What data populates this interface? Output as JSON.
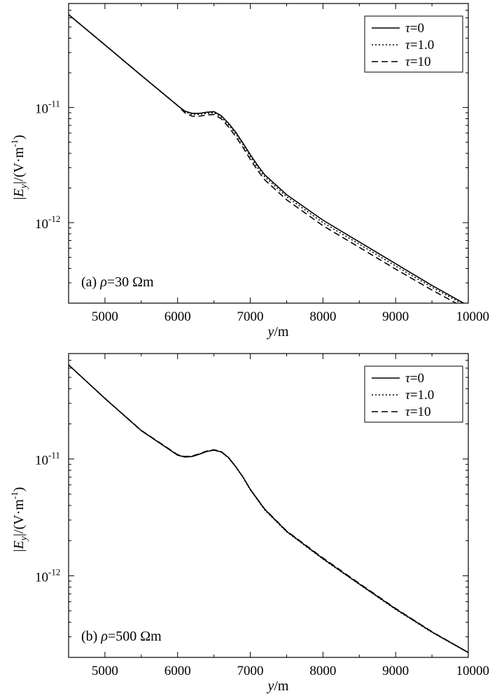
{
  "chart_data": [
    {
      "type": "line",
      "annotation_prefix": "(a) ",
      "annotation_symbol": "ρ",
      "annotation_value": "=30 Ωm",
      "xlabel_italic": "y",
      "xlabel_rest": "/m",
      "ylabel_prefix": "|",
      "ylabel_italic": "E",
      "ylabel_sub": "y",
      "ylabel_rest": "|/(V·m",
      "ylabel_sup": "-1",
      "ylabel_close": ")",
      "xlim": [
        4500,
        10000
      ],
      "ylim": [
        2e-13,
        8e-11
      ],
      "log_y": true,
      "legend_position": "top-right",
      "x_ticks": [
        "5000",
        "6000",
        "7000",
        "8000",
        "9000",
        "10000"
      ],
      "y_ticks": [
        {
          "base": "10",
          "exp": "-11",
          "value": 1e-11
        },
        {
          "base": "10",
          "exp": "-12",
          "value": 1e-12
        }
      ],
      "x": [
        4500,
        5000,
        5500,
        6000,
        6100,
        6200,
        6300,
        6400,
        6500,
        6600,
        6700,
        6800,
        6900,
        7000,
        7100,
        7200,
        7500,
        8000,
        8500,
        9000,
        9500,
        10000
      ],
      "series": [
        {
          "name": "τ=0",
          "symbol": "τ",
          "label_value": "=0",
          "dash": "solid",
          "values": [
            6.4e-11,
            3.5e-11,
            1.9e-11,
            1.04e-11,
            9.3e-12,
            8.9e-12,
            8.9e-12,
            9.1e-12,
            9.2e-12,
            8.5e-12,
            7.3e-12,
            6.1e-12,
            4.9e-12,
            3.9e-12,
            3.15e-12,
            2.6e-12,
            1.75e-12,
            1.05e-12,
            6.8e-13,
            4.4e-13,
            2.85e-13,
            1.9e-13
          ]
        },
        {
          "name": "τ=1.0",
          "symbol": "τ",
          "label_value": "=1.0",
          "dash": "dotted",
          "values": [
            6.4e-11,
            3.5e-11,
            1.9e-11,
            1.04e-11,
            9.2e-12,
            8.7e-12,
            8.7e-12,
            8.9e-12,
            9e-12,
            8.3e-12,
            7.1e-12,
            5.9e-12,
            4.75e-12,
            3.75e-12,
            3e-12,
            2.5e-12,
            1.68e-12,
            1e-12,
            6.5e-13,
            4.2e-13,
            2.75e-13,
            1.85e-13
          ]
        },
        {
          "name": "τ=10",
          "symbol": "τ",
          "label_value": "=10",
          "dash": "dashed",
          "values": [
            6.4e-11,
            3.5e-11,
            1.9e-11,
            1.04e-11,
            9e-12,
            8.4e-12,
            8.4e-12,
            8.6e-12,
            8.7e-12,
            8e-12,
            6.8e-12,
            5.6e-12,
            4.5e-12,
            3.55e-12,
            2.85e-12,
            2.35e-12,
            1.58e-12,
            9.4e-13,
            6.1e-13,
            3.95e-13,
            2.6e-13,
            1.75e-13
          ]
        }
      ]
    },
    {
      "type": "line",
      "annotation_prefix": "(b) ",
      "annotation_symbol": "ρ",
      "annotation_value": "=500 Ωm",
      "xlabel_italic": "y",
      "xlabel_rest": "/m",
      "ylabel_prefix": "|",
      "ylabel_italic": "E",
      "ylabel_sub": "y",
      "ylabel_rest": "|/(V·m",
      "ylabel_sup": "-1",
      "ylabel_close": ")",
      "xlim": [
        4500,
        10000
      ],
      "ylim": [
        2e-13,
        8e-11
      ],
      "log_y": true,
      "legend_position": "top-right",
      "x_ticks": [
        "5000",
        "6000",
        "7000",
        "8000",
        "9000",
        "10000"
      ],
      "y_ticks": [
        {
          "base": "10",
          "exp": "-11",
          "value": 1e-11
        },
        {
          "base": "10",
          "exp": "-12",
          "value": 1e-12
        }
      ],
      "x": [
        4500,
        5000,
        5500,
        6000,
        6100,
        6200,
        6300,
        6400,
        6500,
        6600,
        6700,
        6800,
        6900,
        7000,
        7200,
        7500,
        8000,
        8500,
        9000,
        9500,
        10000
      ],
      "series": [
        {
          "name": "τ=0",
          "symbol": "τ",
          "label_value": "=0",
          "dash": "solid",
          "values": [
            6.4e-11,
            3.3e-11,
            1.75e-11,
            1.08e-11,
            1.04e-11,
            1.05e-11,
            1.1e-11,
            1.16e-11,
            1.19e-11,
            1.15e-11,
            1.03e-11,
            8.6e-12,
            7e-12,
            5.5e-12,
            3.7e-12,
            2.4e-12,
            1.4e-12,
            8.5e-13,
            5.2e-13,
            3.3e-13,
            2.2e-13
          ]
        },
        {
          "name": "τ=1.0",
          "symbol": "τ",
          "label_value": "=1.0",
          "dash": "dotted",
          "values": [
            6.4e-11,
            3.3e-11,
            1.75e-11,
            1.08e-11,
            1.04e-11,
            1.05e-11,
            1.1e-11,
            1.16e-11,
            1.19e-11,
            1.15e-11,
            1.02e-11,
            8.55e-12,
            6.95e-12,
            5.45e-12,
            3.65e-12,
            2.38e-12,
            1.39e-12,
            8.45e-13,
            5.15e-13,
            3.28e-13,
            2.19e-13
          ]
        },
        {
          "name": "τ=10",
          "symbol": "τ",
          "label_value": "=10",
          "dash": "dashed",
          "values": [
            6.4e-11,
            3.3e-11,
            1.76e-11,
            1.09e-11,
            1.05e-11,
            1.06e-11,
            1.11e-11,
            1.17e-11,
            1.2e-11,
            1.16e-11,
            1.03e-11,
            8.6e-12,
            7e-12,
            5.5e-12,
            3.72e-12,
            2.42e-12,
            1.42e-12,
            8.6e-13,
            5.25e-13,
            3.32e-13,
            2.2e-13
          ]
        }
      ]
    }
  ]
}
